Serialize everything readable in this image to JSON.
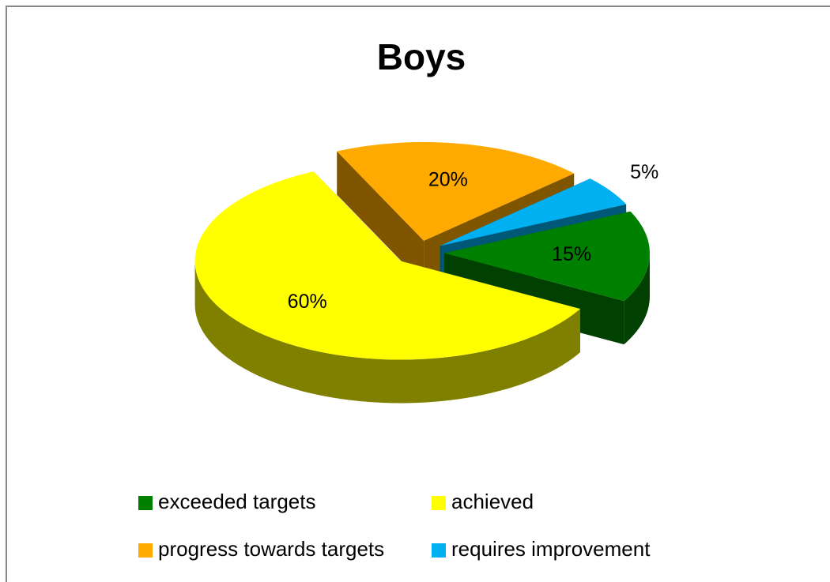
{
  "chart_data": {
    "type": "pie",
    "title": "Boys",
    "categories": [
      "exceeded targets",
      "achieved",
      "progress towards targets",
      "requires improvement"
    ],
    "values": [
      15,
      60,
      20,
      5
    ],
    "value_labels": [
      "15%",
      "60%",
      "20%",
      "5%"
    ],
    "colors": [
      "#008000",
      "#ffff00",
      "#ffaa00",
      "#00b0f0"
    ],
    "legend": "bottom"
  }
}
